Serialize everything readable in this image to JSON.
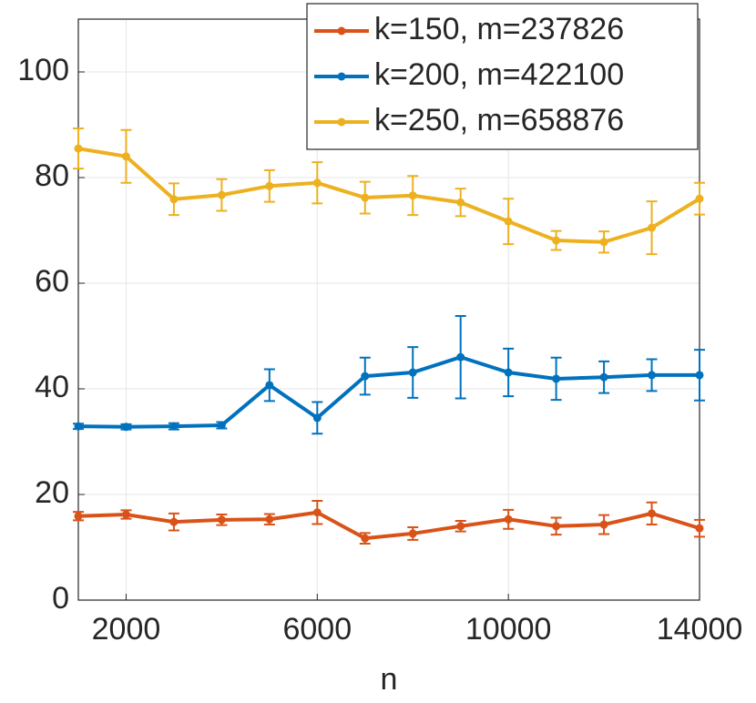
{
  "chart_data": {
    "type": "line",
    "x_label": "n",
    "x": [
      1000,
      2000,
      3000,
      4000,
      5000,
      6000,
      7000,
      8000,
      9000,
      10000,
      11000,
      12000,
      13000,
      14000
    ],
    "series": [
      {
        "name": "k=150, m=237826",
        "color": "#d95319",
        "values": [
          15.9,
          16.2,
          14.8,
          15.2,
          15.3,
          16.6,
          11.7,
          12.6,
          14.0,
          15.3,
          14.0,
          14.3,
          16.4,
          13.6
        ],
        "errors": [
          0.8,
          0.8,
          1.6,
          1.0,
          1.0,
          2.2,
          1.0,
          1.2,
          1.0,
          1.8,
          1.6,
          1.8,
          2.1,
          1.6
        ]
      },
      {
        "name": "k=200, m=422100",
        "color": "#0072bd",
        "values": [
          32.9,
          32.8,
          32.9,
          33.1,
          40.7,
          34.5,
          42.4,
          43.1,
          46.0,
          43.1,
          41.9,
          42.2,
          42.6,
          42.6
        ],
        "errors": [
          0.5,
          0.5,
          0.6,
          0.6,
          3.0,
          3.0,
          3.5,
          4.8,
          7.8,
          4.5,
          4.0,
          3.0,
          3.0,
          4.8
        ]
      },
      {
        "name": "k=250, m=658876",
        "color": "#edb120",
        "values": [
          85.5,
          84.0,
          75.9,
          76.7,
          78.4,
          79.0,
          76.2,
          76.6,
          75.3,
          71.7,
          68.1,
          67.8,
          70.5,
          76.0
        ],
        "errors": [
          3.8,
          5.0,
          3.0,
          3.0,
          3.0,
          3.9,
          3.0,
          3.7,
          2.6,
          4.3,
          1.8,
          2.0,
          5.0,
          3.0
        ]
      }
    ],
    "xlim": [
      1000,
      14000
    ],
    "xticks": [
      2000,
      6000,
      10000,
      14000
    ],
    "ylim": [
      0,
      110
    ],
    "yticks": [
      0,
      20,
      40,
      60,
      80,
      100
    ],
    "grid": true,
    "legend": "upper-right"
  }
}
